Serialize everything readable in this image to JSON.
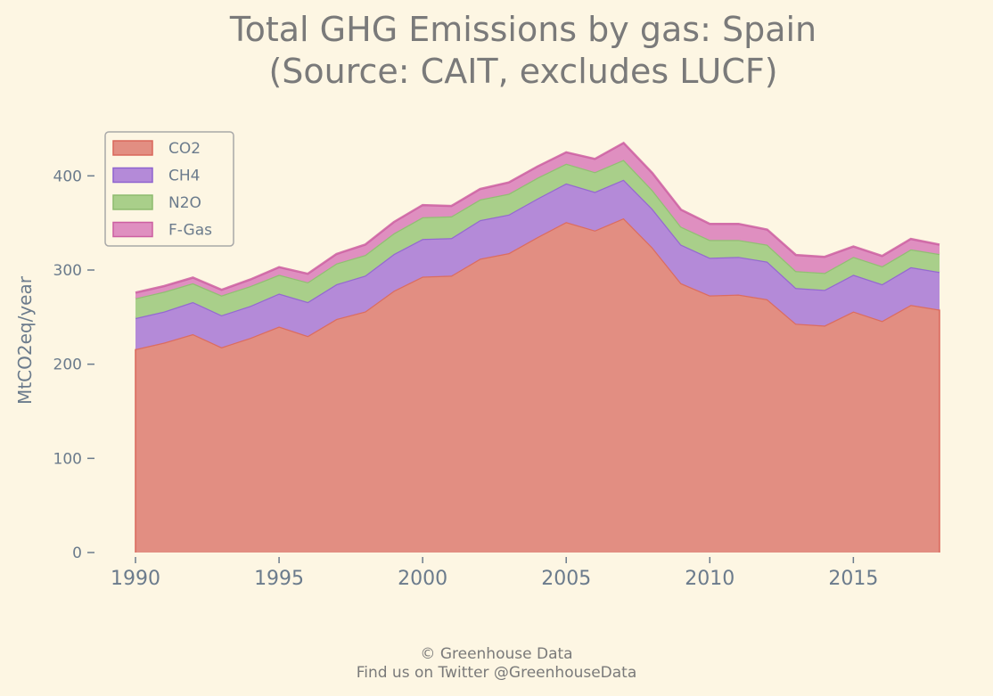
{
  "chart_data": {
    "type": "area",
    "title": [
      "Total GHG Emissions by gas: Spain",
      "(Source: CAIT, excludes LUCF)"
    ],
    "ylabel": "MtCO2eq/year",
    "xlabel": "",
    "xlim": [
      1990,
      2018
    ],
    "ylim": [
      0,
      450
    ],
    "xticks": [
      1990,
      1995,
      2000,
      2005,
      2010,
      2015
    ],
    "yticks": [
      0,
      100,
      200,
      300,
      400
    ],
    "grid": false,
    "legend": "top-left",
    "x": [
      1990,
      1991,
      1992,
      1993,
      1994,
      1995,
      1996,
      1997,
      1998,
      1999,
      2000,
      2001,
      2002,
      2003,
      2004,
      2005,
      2006,
      2007,
      2008,
      2009,
      2010,
      2011,
      2012,
      2013,
      2014,
      2015,
      2016,
      2017,
      2018
    ],
    "series": [
      {
        "name": "CO2",
        "color": "#e28e82",
        "edge": "#d9665a",
        "values": [
          216,
          223,
          232,
          218,
          228,
          240,
          230,
          248,
          256,
          278,
          293,
          294,
          312,
          318,
          335,
          351,
          342,
          355,
          324,
          286,
          273,
          274,
          269,
          243,
          241,
          256,
          246,
          263,
          258
        ]
      },
      {
        "name": "CH4",
        "color": "#b48ad8",
        "edge": "#8e63cf",
        "values": [
          33,
          33,
          34,
          34,
          34,
          35,
          36,
          37,
          38,
          39,
          40,
          40,
          41,
          41,
          41,
          41,
          41,
          41,
          41,
          41,
          40,
          40,
          40,
          38,
          38,
          39,
          39,
          40,
          40
        ]
      },
      {
        "name": "N2O",
        "color": "#a9cf8a",
        "edge": "#8dbb6e",
        "values": [
          21,
          21,
          20,
          21,
          21,
          20,
          21,
          22,
          22,
          22,
          23,
          23,
          22,
          22,
          22,
          21,
          21,
          21,
          20,
          19,
          19,
          18,
          18,
          18,
          18,
          19,
          19,
          19,
          19
        ]
      },
      {
        "name": "F-Gas",
        "color": "#df8fc0",
        "edge": "#cc5fa1",
        "values": [
          6,
          6,
          6,
          6,
          7,
          8,
          9,
          10,
          11,
          12,
          13,
          11,
          11,
          12,
          12,
          12,
          14,
          18,
          18,
          18,
          17,
          17,
          16,
          17,
          17,
          11,
          11,
          11,
          10
        ]
      }
    ]
  },
  "footer": {
    "line1": "© Greenhouse Data",
    "line2": "Find us on Twitter @GreenhouseData"
  }
}
